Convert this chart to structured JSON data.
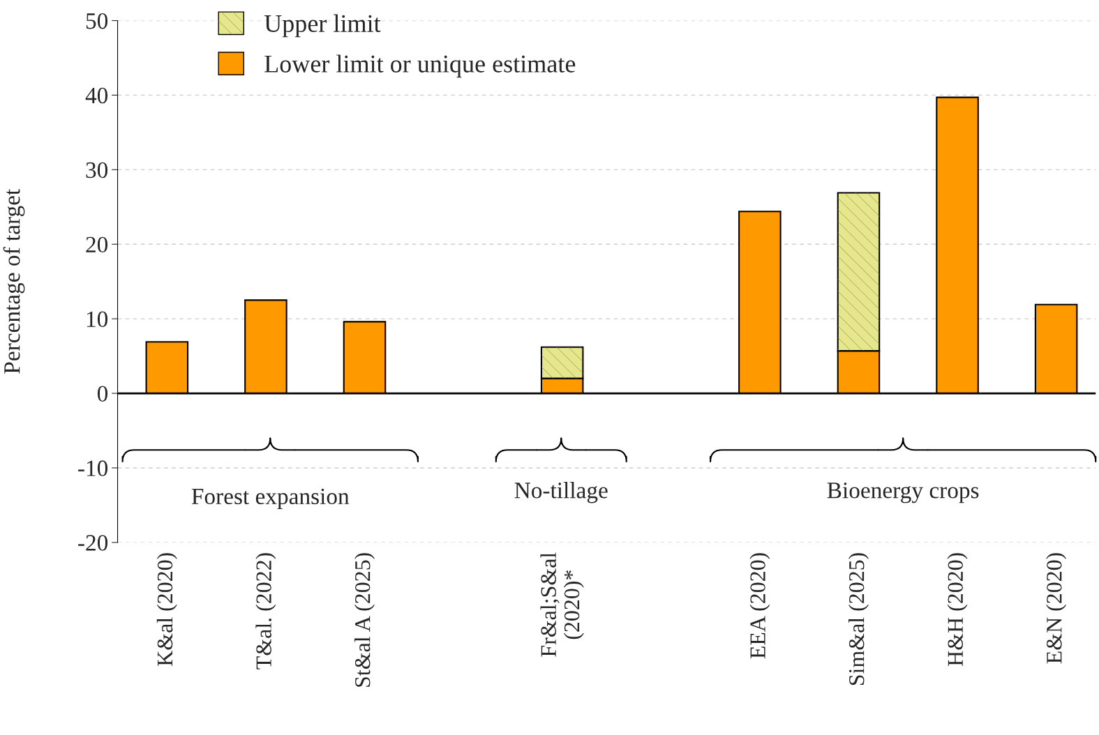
{
  "chart_data": {
    "type": "bar",
    "stacked": true,
    "ylabel": "Percentage of target",
    "categories": [
      "K&al (2020)",
      "T&al. (2022)",
      "St&al A (2025)",
      null,
      "Fr&al;S&al\n(2020)*",
      null,
      "EEA (2020)",
      "Sim&al (2025)",
      "H&H (2020)",
      "E&N (2020)"
    ],
    "series": [
      {
        "name": "Lower limit or unique estimate",
        "color": "#ff9900",
        "values": [
          6.9,
          12.5,
          9.6,
          null,
          2.0,
          null,
          24.4,
          5.7,
          39.7,
          11.9
        ]
      },
      {
        "name": "Upper limit",
        "color": "#e6e68c",
        "values": [
          null,
          null,
          null,
          null,
          4.2,
          null,
          null,
          21.2,
          null,
          null
        ]
      }
    ],
    "ylim": [
      -20,
      50
    ],
    "yticks": [
      -20,
      -10,
      0,
      10,
      20,
      30,
      40,
      50
    ],
    "grid": "y",
    "legend": "top left",
    "annotations": [
      "Forest expansion",
      "No-tillage",
      "Bioenergy crops"
    ]
  }
}
